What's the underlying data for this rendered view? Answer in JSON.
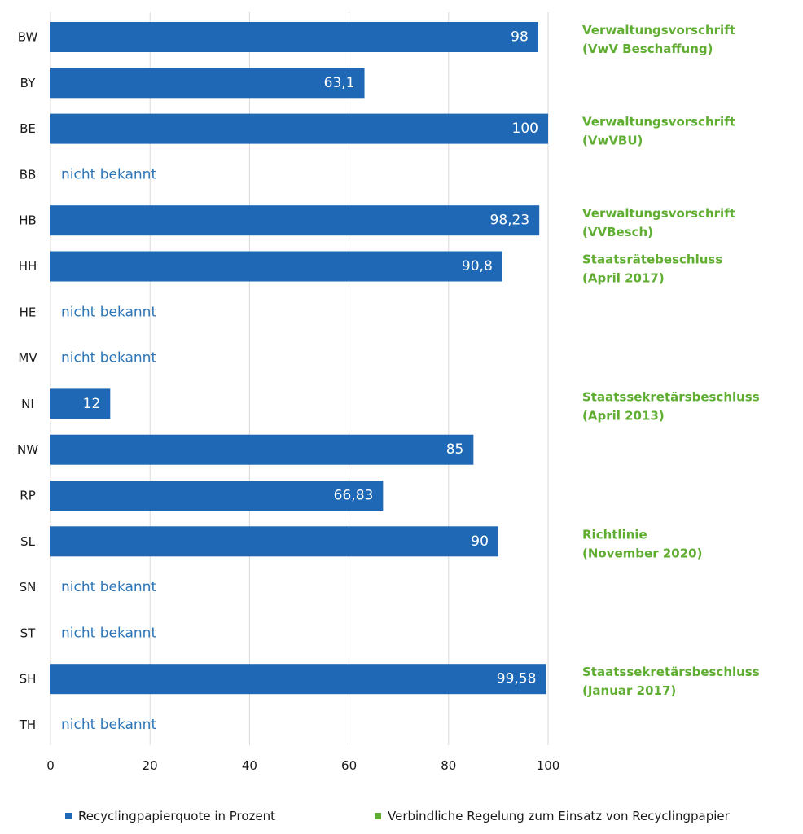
{
  "chart_data": {
    "type": "bar",
    "orientation": "horizontal",
    "categories": [
      "BW",
      "BY",
      "BE",
      "BB",
      "HB",
      "HH",
      "HE",
      "MV",
      "NI",
      "NW",
      "RP",
      "SL",
      "SN",
      "ST",
      "SH",
      "TH"
    ],
    "series": [
      {
        "name": "Recyclingpapierquote in Prozent",
        "values": [
          98,
          63.1,
          100,
          null,
          98.23,
          90.8,
          null,
          null,
          12,
          85,
          66.83,
          90,
          null,
          null,
          99.58,
          null
        ],
        "value_labels": [
          "98",
          "63,1",
          "100",
          null,
          "98,23",
          "90,8",
          null,
          null,
          "12",
          "85",
          "66,83",
          "90",
          null,
          null,
          "99,58",
          null
        ]
      }
    ],
    "missing_label": "nicht bekannt",
    "regulations": [
      [
        "Verwaltungsvorschrift",
        "(VwV Beschaffung)"
      ],
      null,
      [
        "Verwaltungsvorschrift",
        "(VwVBU)"
      ],
      null,
      [
        "Verwaltungsvorschrift",
        "(VVBesch)"
      ],
      [
        "Staatsrätebeschluss",
        "(April 2017)"
      ],
      null,
      null,
      [
        "Staatssekretärsbeschluss",
        "(April 2013)"
      ],
      null,
      null,
      [
        "Richtlinie",
        "(November 2020)"
      ],
      null,
      null,
      [
        "Staatssekretärsbeschluss",
        "(Januar 2017)"
      ],
      null
    ],
    "x_ticks": [
      "0",
      "20",
      "40",
      "60",
      "80",
      "100"
    ],
    "xlim": [
      0,
      100
    ],
    "grid": "vertical",
    "legend_position": "bottom",
    "colors": {
      "bar": "#1f68b5",
      "regulation": "#5fae32",
      "unknown_text": "#2e75b6"
    }
  },
  "legend": {
    "quote_label": "Recyclingpapierquote in Prozent",
    "regulation_label": "Verbindliche Regelung zum Einsatz von Recyclingpapier"
  }
}
